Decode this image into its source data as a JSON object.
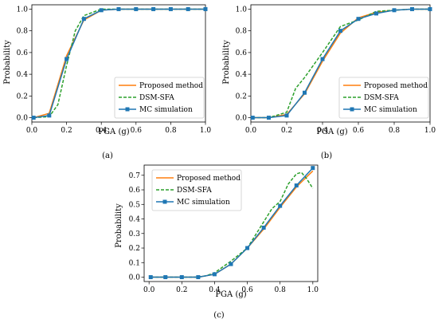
{
  "colors": {
    "proposed": "#ff7f0e",
    "dsm": "#2ca02c",
    "mc": "#1f77b4"
  },
  "chart_data": [
    {
      "panel": "(a)",
      "type": "line",
      "xlabel": "PGA (g)",
      "ylabel": "Probability",
      "xlim": [
        0.0,
        1.0
      ],
      "ylim": [
        -0.04,
        1.04
      ],
      "xticks": [
        "0.0",
        "0.2",
        "0.4",
        "0.6",
        "0.8",
        "1.0"
      ],
      "yticks": [
        "0.0",
        "0.2",
        "0.4",
        "0.6",
        "0.8",
        "1.0"
      ],
      "legend_position": "bottom-right",
      "series": [
        {
          "name": "Proposed method",
          "style": "solid",
          "x": [
            0.01,
            0.1,
            0.2,
            0.3,
            0.4,
            0.5,
            0.6,
            0.7,
            0.8,
            0.9,
            1.0
          ],
          "y": [
            0.0,
            0.04,
            0.57,
            0.9,
            0.99,
            1.0,
            1.0,
            1.0,
            1.0,
            1.0,
            1.0
          ]
        },
        {
          "name": "DSM-SFA",
          "style": "dashed",
          "x": [
            0.01,
            0.1,
            0.15,
            0.2,
            0.25,
            0.3,
            0.35,
            0.4,
            0.5,
            0.6,
            0.7,
            0.8,
            0.9,
            1.0
          ],
          "y": [
            0.0,
            0.01,
            0.12,
            0.48,
            0.8,
            0.94,
            0.97,
            1.0,
            1.0,
            1.0,
            1.0,
            1.0,
            1.0,
            1.0
          ]
        },
        {
          "name": "MC simulation",
          "style": "markers",
          "x": [
            0.01,
            0.1,
            0.2,
            0.3,
            0.4,
            0.5,
            0.6,
            0.7,
            0.8,
            0.9,
            1.0
          ],
          "y": [
            0.0,
            0.02,
            0.54,
            0.91,
            0.99,
            1.0,
            1.0,
            1.0,
            1.0,
            1.0,
            1.0
          ]
        }
      ]
    },
    {
      "panel": "(b)",
      "type": "line",
      "xlabel": "PGA (g)",
      "ylabel": "Probability",
      "xlim": [
        0.0,
        1.0
      ],
      "ylim": [
        -0.04,
        1.04
      ],
      "xticks": [
        "0.0",
        "0.2",
        "0.4",
        "0.6",
        "0.8",
        "1.0"
      ],
      "yticks": [
        "0.0",
        "0.2",
        "0.4",
        "0.6",
        "0.8",
        "1.0"
      ],
      "legend_position": "bottom-right",
      "series": [
        {
          "name": "Proposed method",
          "style": "solid",
          "x": [
            0.01,
            0.1,
            0.2,
            0.3,
            0.4,
            0.5,
            0.6,
            0.7,
            0.8,
            0.9,
            1.0
          ],
          "y": [
            0.0,
            0.0,
            0.03,
            0.22,
            0.52,
            0.78,
            0.92,
            0.97,
            0.99,
            1.0,
            1.0
          ]
        },
        {
          "name": "DSM-SFA",
          "style": "dashed",
          "x": [
            0.01,
            0.1,
            0.2,
            0.25,
            0.3,
            0.4,
            0.5,
            0.55,
            0.6,
            0.7,
            0.8,
            0.9,
            1.0
          ],
          "y": [
            0.0,
            0.0,
            0.05,
            0.27,
            0.37,
            0.6,
            0.84,
            0.87,
            0.9,
            0.98,
            0.99,
            1.0,
            1.0
          ]
        },
        {
          "name": "MC simulation",
          "style": "markers",
          "x": [
            0.01,
            0.1,
            0.2,
            0.3,
            0.4,
            0.5,
            0.6,
            0.7,
            0.8,
            0.9,
            1.0
          ],
          "y": [
            0.0,
            0.0,
            0.02,
            0.23,
            0.54,
            0.8,
            0.91,
            0.96,
            0.99,
            1.0,
            1.0
          ]
        }
      ]
    },
    {
      "panel": "(c)",
      "type": "line",
      "xlabel": "PGA (g)",
      "ylabel": "Probability",
      "xlim": [
        -0.03,
        1.03
      ],
      "ylim": [
        -0.03,
        0.77
      ],
      "xticks": [
        "0.0",
        "0.2",
        "0.4",
        "0.6",
        "0.8",
        "1.0"
      ],
      "yticks": [
        "0.0",
        "0.1",
        "0.2",
        "0.3",
        "0.4",
        "0.5",
        "0.6",
        "0.7"
      ],
      "legend_position": "top-left",
      "series": [
        {
          "name": "Proposed method",
          "style": "solid",
          "x": [
            0.01,
            0.1,
            0.2,
            0.3,
            0.4,
            0.5,
            0.6,
            0.7,
            0.8,
            0.9,
            1.0
          ],
          "y": [
            0.0,
            0.0,
            0.0,
            0.0,
            0.02,
            0.09,
            0.2,
            0.33,
            0.48,
            0.62,
            0.73
          ]
        },
        {
          "name": "DSM-SFA",
          "style": "dashed",
          "x": [
            0.01,
            0.1,
            0.2,
            0.3,
            0.35,
            0.4,
            0.5,
            0.6,
            0.7,
            0.75,
            0.8,
            0.85,
            0.9,
            0.93,
            0.96,
            1.0
          ],
          "y": [
            0.0,
            0.0,
            0.0,
            0.0,
            0.01,
            0.03,
            0.11,
            0.2,
            0.38,
            0.47,
            0.52,
            0.64,
            0.71,
            0.72,
            0.68,
            0.61
          ]
        },
        {
          "name": "MC simulation",
          "style": "markers",
          "x": [
            0.01,
            0.1,
            0.2,
            0.3,
            0.4,
            0.5,
            0.6,
            0.7,
            0.8,
            0.9,
            1.0
          ],
          "y": [
            0.0,
            0.0,
            0.0,
            0.0,
            0.02,
            0.09,
            0.2,
            0.34,
            0.49,
            0.63,
            0.75
          ]
        }
      ]
    }
  ]
}
